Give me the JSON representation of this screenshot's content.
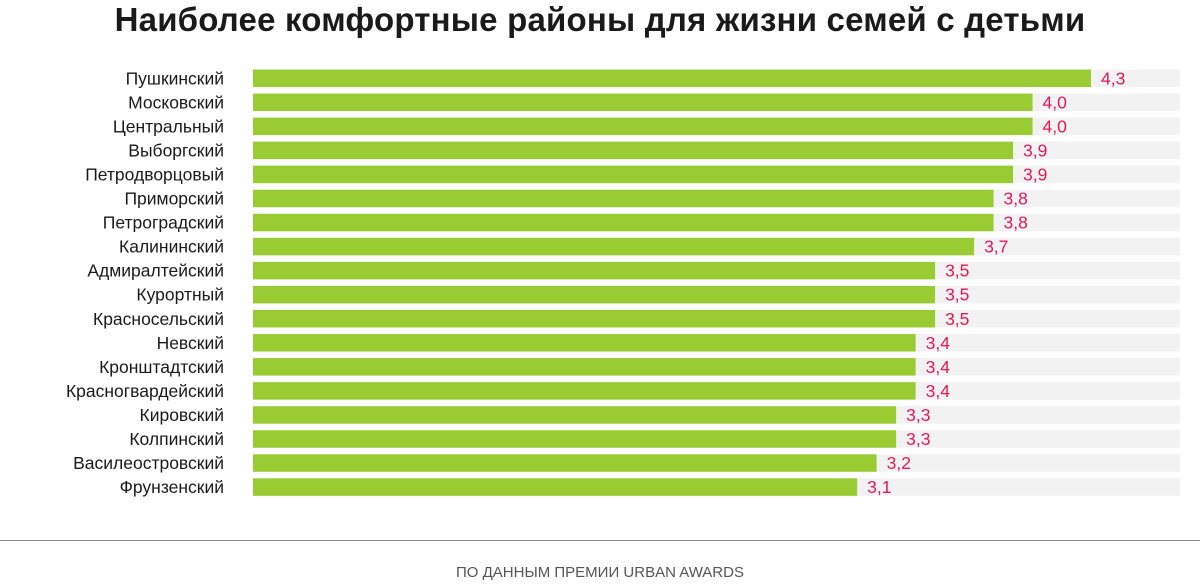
{
  "chart_data": {
    "type": "bar",
    "orientation": "horizontal",
    "title": "Наиболее комфортные районы для жизни семей с детьми",
    "categories": [
      "Пушкинский",
      "Московский",
      "Центральный",
      "Выборгский",
      "Петродворцовый",
      "Приморский",
      "Петроградский",
      "Калининский",
      "Адмиралтейский",
      "Курортный",
      "Красносельский",
      "Невский",
      "Кронштадтский",
      "Красногвардейский",
      "Кировский",
      "Колпинский",
      "Василеостровский",
      "Фрунзенский"
    ],
    "values": [
      4.3,
      4.0,
      4.0,
      3.9,
      3.9,
      3.8,
      3.8,
      3.7,
      3.5,
      3.5,
      3.5,
      3.4,
      3.4,
      3.4,
      3.3,
      3.3,
      3.2,
      3.1
    ],
    "value_labels": [
      "4,3",
      "4,0",
      "4,0",
      "3,9",
      "3,9",
      "3,8",
      "3,8",
      "3,7",
      "3,5",
      "3,5",
      "3,5",
      "3,4",
      "3,4",
      "3,4",
      "3,3",
      "3,3",
      "3,2",
      "3,1"
    ],
    "xlim": [
      0,
      4.3
    ],
    "grid": false,
    "legend": "none",
    "bar_color": "#99cc33",
    "track_color": "#f2f2f2",
    "label_color": "#e4175e",
    "category_color": "#1a1a1a"
  },
  "footer": {
    "source": "ПО ДАННЫМ ПРЕМИИ URBAN AWARDS"
  }
}
